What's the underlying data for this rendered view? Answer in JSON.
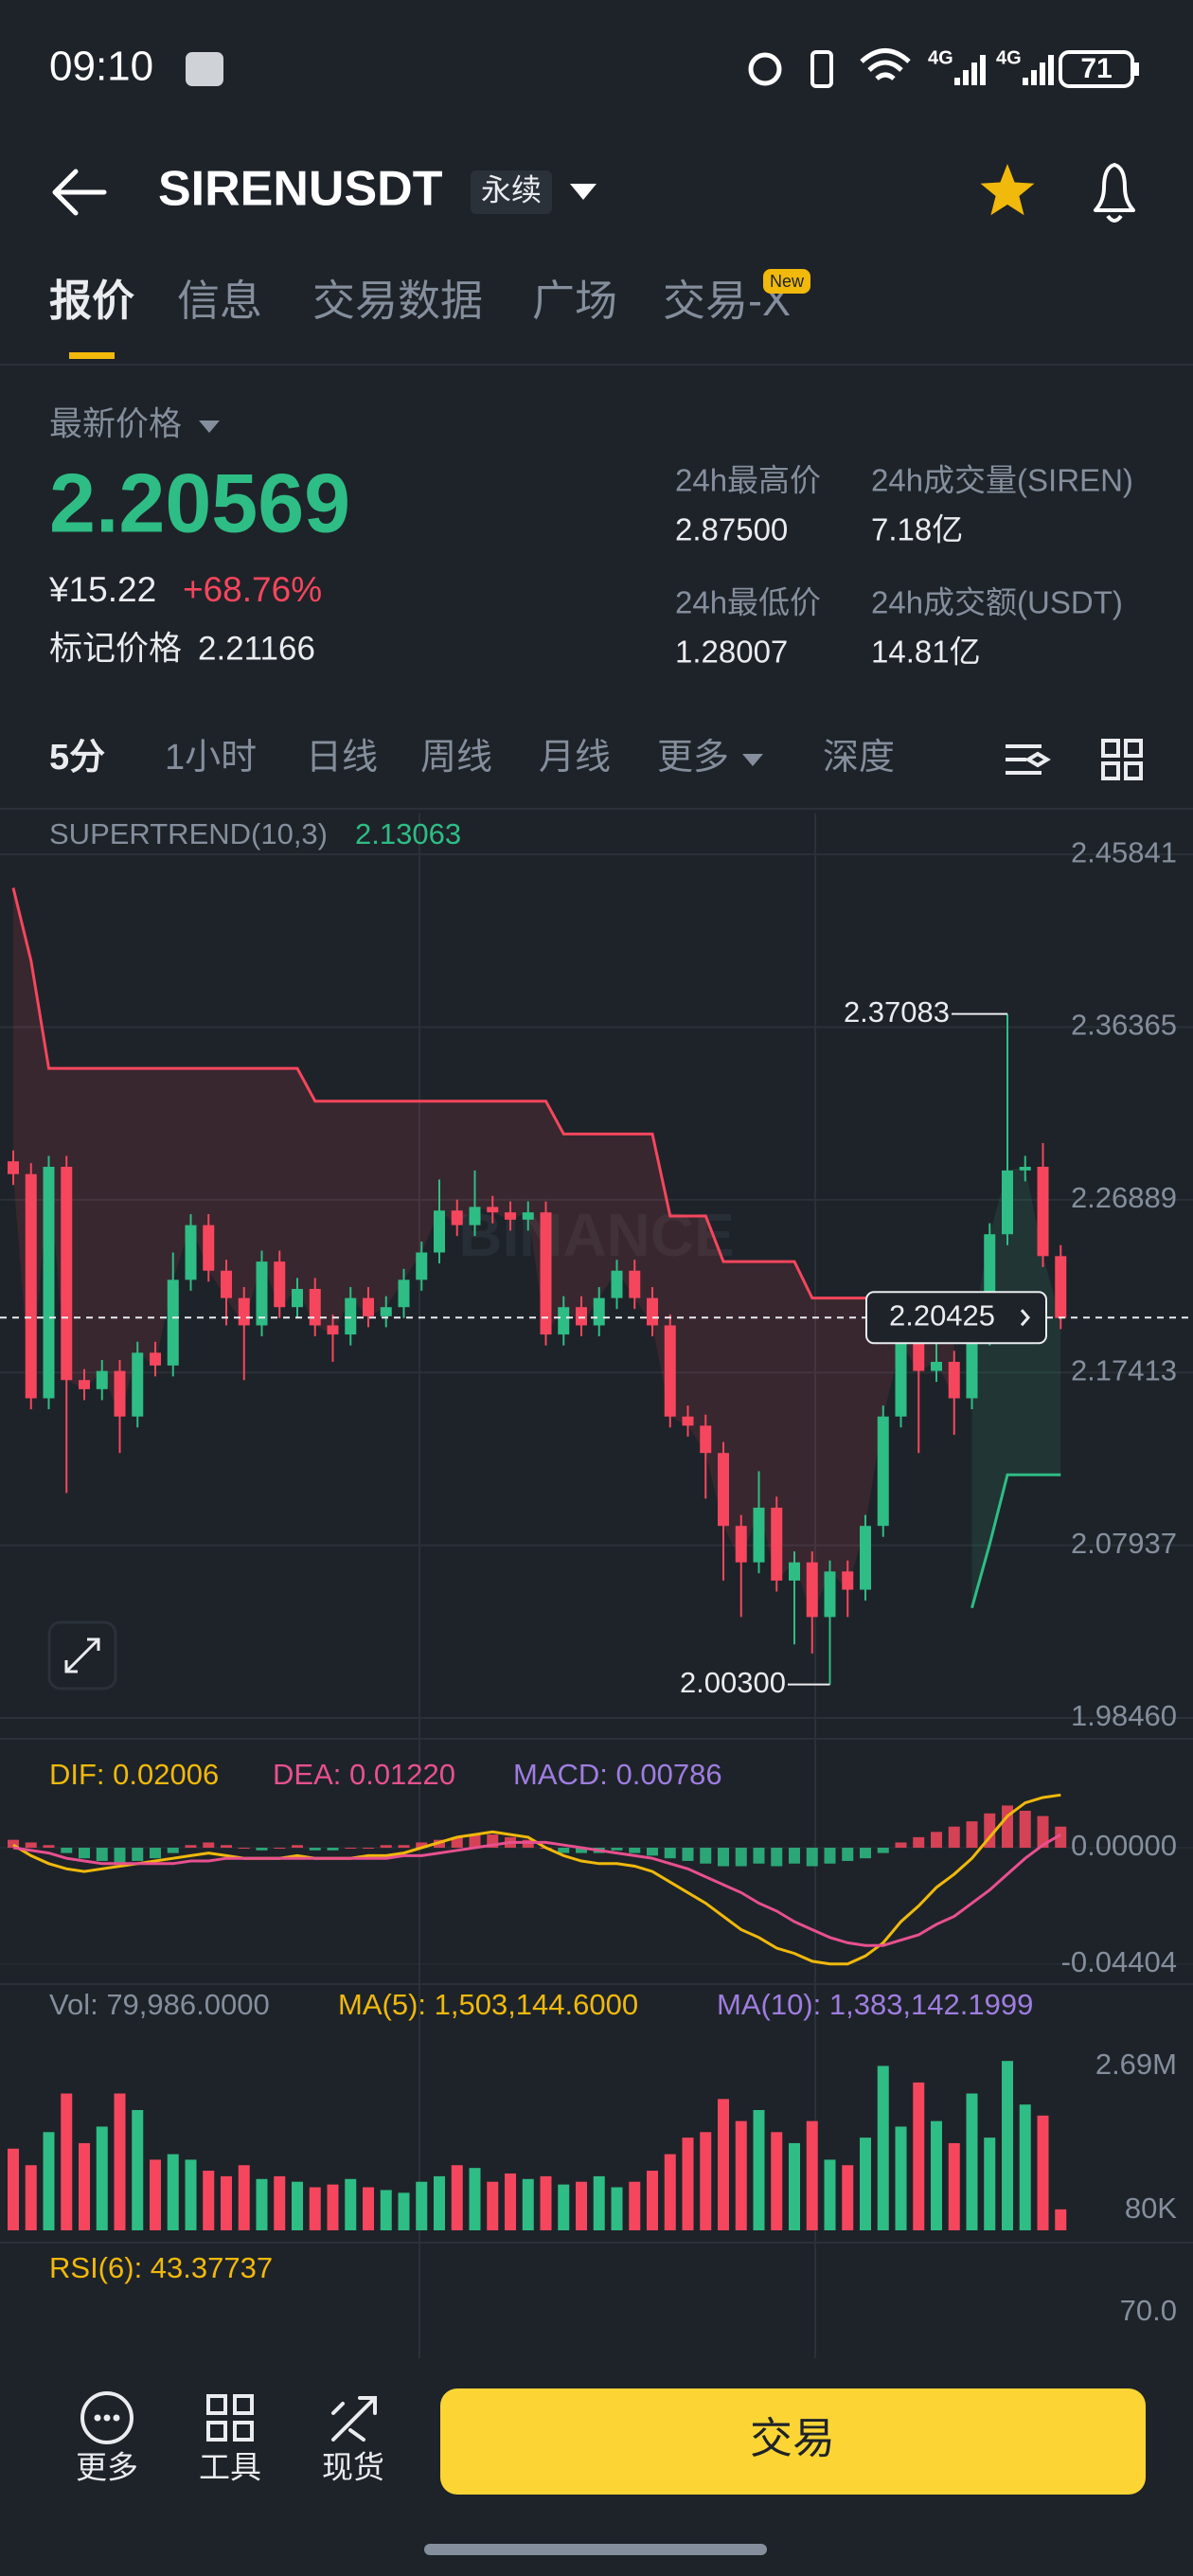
{
  "status_bar": {
    "time": "09:10",
    "network": [
      "4G",
      "4G"
    ],
    "battery": "71"
  },
  "header": {
    "symbol": "SIRENUSDT",
    "badge": "永续"
  },
  "tabs": {
    "items": [
      "报价",
      "信息",
      "交易数据",
      "广场",
      "交易-X"
    ],
    "new_badge": "New",
    "active": 0
  },
  "ticker": {
    "last_price_label": "最新价格",
    "last_price": "2.20569",
    "cny": "¥15.22",
    "change": "+68.76%",
    "mark_label": "标记价格",
    "mark_price": "2.21166",
    "stats": [
      {
        "label": "24h最高价",
        "value": "2.87500"
      },
      {
        "label": "24h成交量(SIREN)",
        "value": "7.18亿"
      },
      {
        "label": "24h最低价",
        "value": "1.28007"
      },
      {
        "label": "24h成交额(USDT)",
        "value": "14.81亿"
      }
    ]
  },
  "intervals": {
    "items": [
      "5分",
      "1小时",
      "日线",
      "周线",
      "月线",
      "更多",
      "深度"
    ],
    "active": 0
  },
  "chart": {
    "type": "candlestick",
    "indicator_label": "SUPERTREND(10,3)",
    "indicator_value": "2.13063",
    "watermark": "BINANCE",
    "ylim": [
      1.9732,
      2.4808
    ],
    "yticks": [
      2.45841,
      2.36365,
      2.26889,
      2.17413,
      2.07937,
      {
        "value": 1.9846,
        "label": "1.98460"
      }
    ],
    "up_color": "#2ebd85",
    "down_color": "#f6465d",
    "open": [
      2.29,
      2.283,
      2.16,
      2.287,
      2.17,
      2.165,
      2.175,
      2.15,
      2.185,
      2.178,
      2.225,
      2.255,
      2.23,
      2.215,
      2.2,
      2.235,
      2.21,
      2.22,
      2.2,
      2.195,
      2.215,
      2.205,
      2.21,
      2.225,
      2.24,
      2.263,
      2.255,
      2.265,
      2.262,
      2.258,
      2.262,
      2.195,
      2.21,
      2.2,
      2.215,
      2.23,
      2.215,
      2.2,
      2.15,
      2.145,
      2.13,
      2.09,
      2.07,
      2.1,
      2.06,
      2.07,
      2.04,
      2.065,
      2.055,
      2.09,
      2.15,
      2.19,
      2.175,
      2.18,
      2.16,
      2.195,
      2.25,
      2.285,
      2.287,
      2.238
    ],
    "high": [
      2.296,
      2.289,
      2.293,
      2.293,
      2.176,
      2.181,
      2.181,
      2.191,
      2.191,
      2.24,
      2.261,
      2.261,
      2.236,
      2.221,
      2.241,
      2.241,
      2.226,
      2.226,
      2.206,
      2.221,
      2.221,
      2.216,
      2.231,
      2.246,
      2.28,
      2.269,
      2.285,
      2.271,
      2.268,
      2.268,
      2.268,
      2.216,
      2.216,
      2.221,
      2.236,
      2.236,
      2.221,
      2.206,
      2.156,
      2.151,
      2.136,
      2.096,
      2.12,
      2.106,
      2.076,
      2.076,
      2.071,
      2.071,
      2.096,
      2.156,
      2.215,
      2.196,
      2.205,
      2.186,
      2.201,
      2.256,
      2.37083,
      2.293,
      2.3,
      2.244
    ],
    "low": [
      2.277,
      2.154,
      2.154,
      2.108,
      2.159,
      2.159,
      2.13,
      2.144,
      2.172,
      2.172,
      2.219,
      2.224,
      2.2,
      2.17,
      2.194,
      2.204,
      2.204,
      2.194,
      2.18,
      2.189,
      2.199,
      2.199,
      2.204,
      2.219,
      2.234,
      2.249,
      2.249,
      2.256,
      2.252,
      2.252,
      2.189,
      2.189,
      2.194,
      2.194,
      2.209,
      2.209,
      2.194,
      2.144,
      2.139,
      2.105,
      2.06,
      2.04,
      2.064,
      2.054,
      2.025,
      2.02,
      2.003,
      2.04,
      2.049,
      2.084,
      2.144,
      2.13,
      2.169,
      2.14,
      2.154,
      2.189,
      2.244,
      2.279,
      2.232,
      2.198
    ],
    "close": [
      2.283,
      2.16,
      2.287,
      2.17,
      2.165,
      2.175,
      2.15,
      2.185,
      2.178,
      2.225,
      2.255,
      2.23,
      2.215,
      2.2,
      2.235,
      2.21,
      2.22,
      2.2,
      2.195,
      2.215,
      2.205,
      2.21,
      2.225,
      2.24,
      2.263,
      2.255,
      2.265,
      2.262,
      2.258,
      2.262,
      2.195,
      2.21,
      2.2,
      2.215,
      2.23,
      2.215,
      2.2,
      2.15,
      2.145,
      2.13,
      2.09,
      2.07,
      2.1,
      2.06,
      2.07,
      2.04,
      2.065,
      2.055,
      2.09,
      2.15,
      2.19,
      2.175,
      2.18,
      2.16,
      2.195,
      2.25,
      2.285,
      2.287,
      2.238,
      2.204
    ],
    "supertrend": {
      "bear_color": "#f6465d",
      "bull_color": "#2ebd85",
      "bear": [
        2.44,
        2.4,
        2.341,
        2.341,
        2.341,
        2.341,
        2.341,
        2.341,
        2.341,
        2.341,
        2.341,
        2.341,
        2.341,
        2.341,
        2.341,
        2.341,
        2.341,
        2.323,
        2.323,
        2.323,
        2.323,
        2.323,
        2.323,
        2.323,
        2.323,
        2.323,
        2.323,
        2.323,
        2.323,
        2.323,
        2.323,
        2.305,
        2.305,
        2.305,
        2.305,
        2.305,
        2.305,
        2.26,
        2.26,
        2.26,
        2.235,
        2.235,
        2.235,
        2.235,
        2.235,
        2.215,
        2.215,
        2.215,
        2.215,
        2.215,
        2.215,
        2.215,
        2.215,
        2.215,
        null,
        null,
        null,
        null,
        null,
        null
      ],
      "bull": [
        null,
        null,
        null,
        null,
        null,
        null,
        null,
        null,
        null,
        null,
        null,
        null,
        null,
        null,
        null,
        null,
        null,
        null,
        null,
        null,
        null,
        null,
        null,
        null,
        null,
        null,
        null,
        null,
        null,
        null,
        null,
        null,
        null,
        null,
        null,
        null,
        null,
        null,
        null,
        null,
        null,
        null,
        null,
        null,
        null,
        null,
        null,
        null,
        null,
        null,
        null,
        null,
        null,
        null,
        2.045,
        2.08,
        2.118,
        2.118,
        2.118,
        2.118
      ]
    },
    "high_marker": 2.37083,
    "low_marker": {
      "value": 2.003,
      "label": "2.00300"
    },
    "last_price": 2.20425,
    "macd": {
      "dif_label": "DIF: 0.02006",
      "dea_label": "DEA: 0.01220",
      "macd_label": "MACD: 0.00786",
      "dif_color": "#f0b90b",
      "dea_color": "#e8508f",
      "macd_color": "#9f7de0",
      "pos_color": "#f6465d",
      "neg_color": "#2ebd85",
      "ylim": [
        -0.0502,
        0.0183
      ],
      "yticks": [
        {
          "value": 0,
          "label": "0.00000"
        },
        -0.04404
      ],
      "hist": [
        0.003,
        0.002,
        0.001,
        -0.002,
        -0.004,
        -0.005,
        -0.006,
        -0.005,
        -0.004,
        -0.002,
        0.001,
        0.002,
        0.001,
        0,
        -0.001,
        0,
        0.001,
        -0.001,
        -0.001,
        0,
        0,
        0.001,
        0.001,
        0.002,
        0.003,
        0.004,
        0.005,
        0.005,
        0.004,
        0.003,
        0,
        -0.002,
        -0.002,
        -0.002,
        -0.001,
        -0.002,
        -0.003,
        -0.004,
        -0.005,
        -0.006,
        -0.007,
        -0.007,
        -0.006,
        -0.007,
        -0.006,
        -0.007,
        -0.006,
        -0.005,
        -0.004,
        -0.002,
        0.002,
        0.004,
        0.006,
        0.008,
        0.01,
        0.013,
        0.016,
        0.014,
        0.012,
        0.008
      ],
      "dif": [
        0.001,
        -0.003,
        -0.006,
        -0.008,
        -0.009,
        -0.008,
        -0.007,
        -0.006,
        -0.005,
        -0.004,
        -0.003,
        -0.002,
        -0.003,
        -0.004,
        -0.004,
        -0.004,
        -0.003,
        -0.004,
        -0.004,
        -0.004,
        -0.003,
        -0.003,
        -0.002,
        0,
        0.002,
        0.004,
        0.005,
        0.006,
        0.005,
        0.004,
        0,
        -0.003,
        -0.005,
        -0.006,
        -0.006,
        -0.007,
        -0.009,
        -0.013,
        -0.017,
        -0.021,
        -0.026,
        -0.031,
        -0.034,
        -0.038,
        -0.04,
        -0.043,
        -0.044,
        -0.044,
        -0.041,
        -0.036,
        -0.028,
        -0.022,
        -0.015,
        -0.01,
        -0.004,
        0.004,
        0.012,
        0.017,
        0.019,
        0.02
      ],
      "dea": [
        0,
        -0.001,
        -0.002,
        -0.004,
        -0.005,
        -0.006,
        -0.006,
        -0.006,
        -0.006,
        -0.006,
        -0.005,
        -0.005,
        -0.004,
        -0.004,
        -0.004,
        -0.004,
        -0.004,
        -0.004,
        -0.004,
        -0.004,
        -0.004,
        -0.004,
        -0.003,
        -0.003,
        -0.002,
        -0.001,
        0,
        0.001,
        0.002,
        0.002,
        0.002,
        0.001,
        0,
        -0.001,
        -0.002,
        -0.003,
        -0.004,
        -0.006,
        -0.008,
        -0.011,
        -0.014,
        -0.017,
        -0.021,
        -0.024,
        -0.028,
        -0.031,
        -0.034,
        -0.036,
        -0.037,
        -0.037,
        -0.035,
        -0.033,
        -0.029,
        -0.026,
        -0.021,
        -0.016,
        -0.01,
        -0.004,
        0.001,
        0.005
      ]
    },
    "volume": {
      "label": "Vol: 79,986.0000",
      "ma5_label": "MA(5): 1,503,144.6000",
      "ma10_label": "MA(10): 1,383,142.1999",
      "ma5_color": "#f0b90b",
      "ma10_color": "#9f7de0",
      "ylim": [
        -280600,
        3411000
      ],
      "yticks": [
        {
          "value": 2690000,
          "label": "2.69M"
        },
        {
          "value": 80000,
          "label": "80K"
        }
      ],
      "values": [
        1200000,
        900000,
        1500000,
        2200000,
        1300000,
        1600000,
        2200000,
        1900000,
        1000000,
        1100000,
        1000000,
        800000,
        700000,
        900000,
        650000,
        700000,
        600000,
        500000,
        550000,
        650000,
        500000,
        450000,
        400000,
        600000,
        700000,
        900000,
        850000,
        600000,
        750000,
        650000,
        700000,
        550000,
        600000,
        700000,
        500000,
        600000,
        800000,
        1100000,
        1400000,
        1500000,
        2100000,
        1700000,
        1900000,
        1500000,
        1300000,
        1700000,
        1000000,
        900000,
        1400000,
        2700000,
        1600000,
        2400000,
        1700000,
        1300000,
        2200000,
        1400000,
        2790000,
        2000000,
        1800000,
        100000
      ]
    },
    "rsi": {
      "label": "RSI(6): 43.37737",
      "color": "#f0b90b",
      "ylim": [
        46,
        106
      ],
      "yticks": [
        {
          "value": 70,
          "label": "70.0"
        }
      ]
    }
  },
  "bottom_bar": {
    "items": [
      "更多",
      "工具",
      "现货"
    ],
    "button": "交易"
  }
}
